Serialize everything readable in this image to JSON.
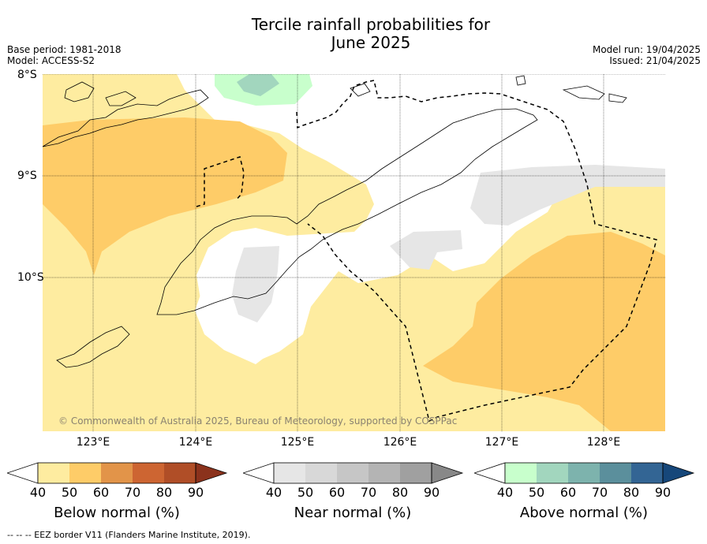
{
  "title_line1": "Tercile rainfall probabilities for",
  "title_line2": "June 2025",
  "meta_left": {
    "base_period": "Base period: 1981-2018",
    "model": "Model: ACCESS-S2"
  },
  "meta_right": {
    "model_run": "Model run: 19/04/2025",
    "issued": "Issued: 21/04/2025"
  },
  "latitude_labels": [
    "8°S",
    "9°S",
    "10°S"
  ],
  "longitude_labels": [
    "123°E",
    "124°E",
    "125°E",
    "126°E",
    "127°E",
    "128°E"
  ],
  "credit": "© Commonwealth of Australia 2025, Bureau of Meteorology, supported by COSPPac",
  "colorbars": [
    {
      "label": "Below normal (%)",
      "ticks": [
        "40",
        "50",
        "60",
        "70",
        "80",
        "90"
      ],
      "colors": [
        "#ffffff",
        "#feeca0",
        "#fecc68",
        "#e29449",
        "#cd6532",
        "#b04e27",
        "#8b321c"
      ]
    },
    {
      "label": "Near normal (%)",
      "ticks": [
        "40",
        "50",
        "60",
        "70",
        "80",
        "90"
      ],
      "colors": [
        "#ffffff",
        "#e6e6e6",
        "#d8d8d8",
        "#c6c6c6",
        "#b4b4b4",
        "#a0a0a0",
        "#888888"
      ]
    },
    {
      "label": "Above normal (%)",
      "ticks": [
        "40",
        "50",
        "60",
        "70",
        "80",
        "90"
      ],
      "colors": [
        "#ffffff",
        "#c8ffcc",
        "#a2d6be",
        "#7db3ad",
        "#5b8f9c",
        "#336594",
        "#16477a"
      ]
    }
  ],
  "footnote": "--  --  -- EEZ border V11 (Flanders Marine Institute, 2019)."
}
